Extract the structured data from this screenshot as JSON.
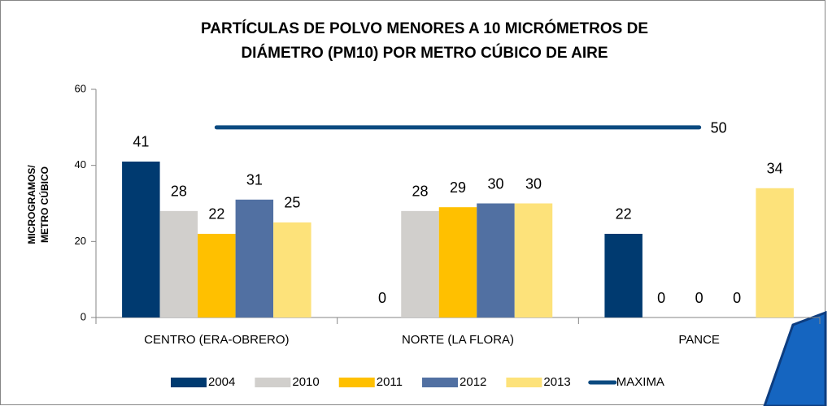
{
  "chart_data": {
    "type": "bar",
    "title": [
      "PARTÍCULAS DE POLVO MENORES A 10 MICRÓMETROS DE",
      "DIÁMETRO (PM10) POR METRO CÚBICO DE AIRE"
    ],
    "ylabel": [
      "MICROGRAMOS/",
      "METRO CÚBICO"
    ],
    "categories": [
      "CENTRO (ERA-OBRERO)",
      "NORTE (LA FLORA)",
      "PANCE"
    ],
    "series": [
      {
        "name": "2004",
        "color": "#003a70",
        "values": [
          41,
          0,
          22
        ]
      },
      {
        "name": "2010",
        "color": "#d1cfcc",
        "values": [
          28,
          28,
          0
        ]
      },
      {
        "name": "2011",
        "color": "#ffc000",
        "values": [
          22,
          29,
          0
        ]
      },
      {
        "name": "2012",
        "color": "#5170a2",
        "values": [
          31,
          30,
          0
        ]
      },
      {
        "name": "2013",
        "color": "#fde27a",
        "values": [
          25,
          30,
          34
        ]
      },
      {
        "name": "MAXIMA",
        "type": "line",
        "color": "#0b4a80",
        "values": [
          50,
          50,
          50
        ]
      }
    ],
    "ylim": [
      0,
      60
    ],
    "yticks": [
      0,
      20,
      40,
      60
    ],
    "grid": false,
    "legend": "bottom"
  }
}
